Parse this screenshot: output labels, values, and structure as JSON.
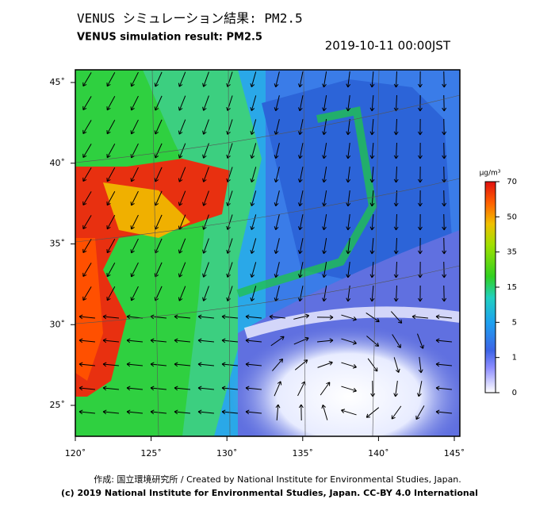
{
  "header": {
    "title": "VENUS シミュレーション結果: PM2.5",
    "subtitle": "VENUS simulation result: PM2.5",
    "datetime": "2019-10-11 00:00JST"
  },
  "map": {
    "lon_ticks": [
      {
        "value": 120,
        "label": "120˚"
      },
      {
        "value": 125,
        "label": "125˚"
      },
      {
        "value": 130,
        "label": "130˚"
      },
      {
        "value": 135,
        "label": "135˚"
      },
      {
        "value": 140,
        "label": "140˚"
      },
      {
        "value": 145,
        "label": "145˚"
      }
    ],
    "lat_ticks": [
      {
        "value": 25,
        "label": "25˚"
      },
      {
        "value": 30,
        "label": "30˚"
      },
      {
        "value": 35,
        "label": "35˚"
      },
      {
        "value": 40,
        "label": "40˚"
      },
      {
        "value": 45,
        "label": "45˚"
      }
    ]
  },
  "colorbar": {
    "unit": "μg/m³",
    "ticks": [
      0,
      1,
      5,
      15,
      35,
      50,
      70
    ]
  },
  "footer": {
    "credit": "作成: 国立環境研究所 / Created by National Institute for Environmental Studies, Japan.",
    "copyright": "(c) 2019 National Institute for Environmental Studies, Japan. CC-BY 4.0 International"
  }
}
